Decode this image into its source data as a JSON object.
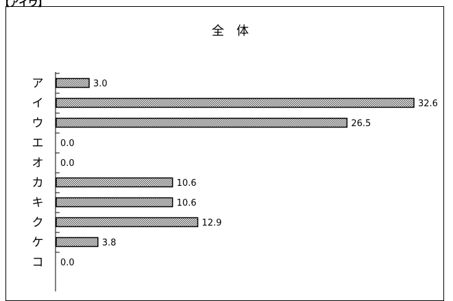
{
  "header_fragment": "【アイウ】",
  "chart_data": {
    "type": "bar",
    "orientation": "horizontal",
    "title": "全　体",
    "categories": [
      "ア",
      "イ",
      "ウ",
      "エ",
      "オ",
      "カ",
      "キ",
      "ク",
      "ケ",
      "コ"
    ],
    "series": [
      {
        "values": [
          3.0,
          32.6,
          26.5,
          0.0,
          0.0,
          10.6,
          10.6,
          12.9,
          3.8,
          0.0
        ]
      }
    ],
    "value_labels": [
      "3.0",
      "32.6",
      "26.5",
      "0.0",
      "0.0",
      "10.6",
      "10.6",
      "12.9",
      "3.8",
      "0.0"
    ],
    "xlim": [
      0,
      32.6
    ],
    "grid": false,
    "bar_fill": "dotted-pattern"
  }
}
